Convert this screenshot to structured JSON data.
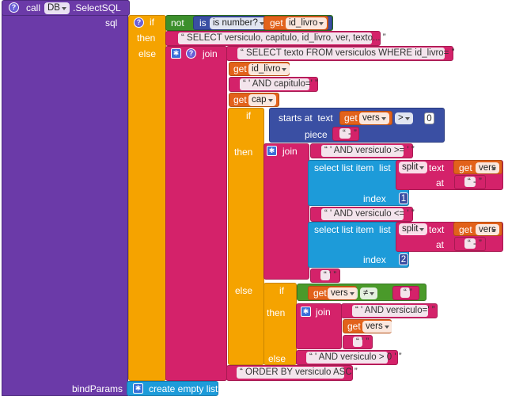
{
  "colors": {
    "purple": "#6b3aa8",
    "orange": "#f5a300",
    "pink": "#d4226a",
    "green": "#4a9a2a",
    "red_orange": "#e2621b",
    "indigo": "#3a4fa3",
    "blue": "#1d9bd9"
  },
  "call_block": {
    "call": "call",
    "component": "DB",
    "method": ".SelectSQL",
    "sql_label": "sql",
    "bindparams_label": "bindParams",
    "create_empty_list": "create empty list"
  },
  "if_block": {
    "if": "if",
    "then": "then",
    "else": "else",
    "not": "not",
    "is_number": "is number?",
    "get": "get",
    "id_livro": "id_livro"
  },
  "then_text": "SELECT versiculo, capitulo, id_livro, ver, texto...",
  "join_label": "join",
  "else_parts": {
    "select_texto": "SELECT texto FROM versiculos WHERE id_livro=",
    "id_livro": "id_livro",
    "and_capitulo": "' AND capitulo='",
    "cap": "cap",
    "order_by": "ORDER BY versiculo ASC"
  },
  "inner_if": {
    "if": "if",
    "then": "then",
    "else": "else",
    "starts_at": "starts at",
    "text": "text",
    "piece": "piece",
    "vers": "vers",
    "op": ">",
    "zero": "0",
    "dash": "-",
    "and_versiculo_ge": "' AND versiculo >= '",
    "select_list_item": "select list item",
    "list": "list",
    "split": "split",
    "at": "at",
    "index": "index",
    "idx1": "1",
    "idx2": "2",
    "and_versiculo_le": "' AND versiculo <= '",
    "quote": "'",
    "neq": "≠",
    "and_versiculo_eq": "' AND versiculo='",
    "and_versiculo_gt0": "' AND versiculo > 0 '"
  }
}
